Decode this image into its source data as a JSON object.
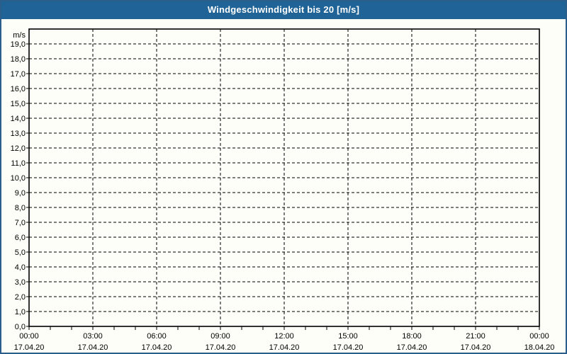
{
  "window": {
    "title": "Windgeschwindigkeit bis 20 [m/s]"
  },
  "colors": {
    "titlebar_bg": "#1F6397",
    "titlebar_text": "#FFFFFF",
    "frame_border": "#2C5E8C",
    "background": "#FDFEF7",
    "grid": "#000000",
    "text": "#000000"
  },
  "chart_data": {
    "type": "line",
    "title": "Windgeschwindigkeit bis 20 [m/s]",
    "xlabel": "",
    "ylabel": "",
    "unit_label": "m/s",
    "ylim": [
      0,
      20
    ],
    "y_tick_step": 1,
    "y_tick_labels": [
      "0,0",
      "1,0",
      "2,0",
      "3,0",
      "4,0",
      "5,0",
      "6,0",
      "7,0",
      "8,0",
      "9,0",
      "10,0",
      "11,0",
      "12,0",
      "13,0",
      "14,0",
      "15,0",
      "16,0",
      "17,0",
      "18,0",
      "19,0"
    ],
    "x_major_ticks": [
      {
        "time": "00:00",
        "date": "17.04.20"
      },
      {
        "time": "03:00",
        "date": "17.04.20"
      },
      {
        "time": "06:00",
        "date": "17.04.20"
      },
      {
        "time": "09:00",
        "date": "17.04.20"
      },
      {
        "time": "12:00",
        "date": "17.04.20"
      },
      {
        "time": "15:00",
        "date": "17.04.20"
      },
      {
        "time": "18:00",
        "date": "17.04.20"
      },
      {
        "time": "21:00",
        "date": "17.04.20"
      },
      {
        "time": "00:00",
        "date": "18.04.20"
      }
    ],
    "x_minor_ticks_per_major": 3,
    "grid": "dashed",
    "legend": "none",
    "series": []
  }
}
